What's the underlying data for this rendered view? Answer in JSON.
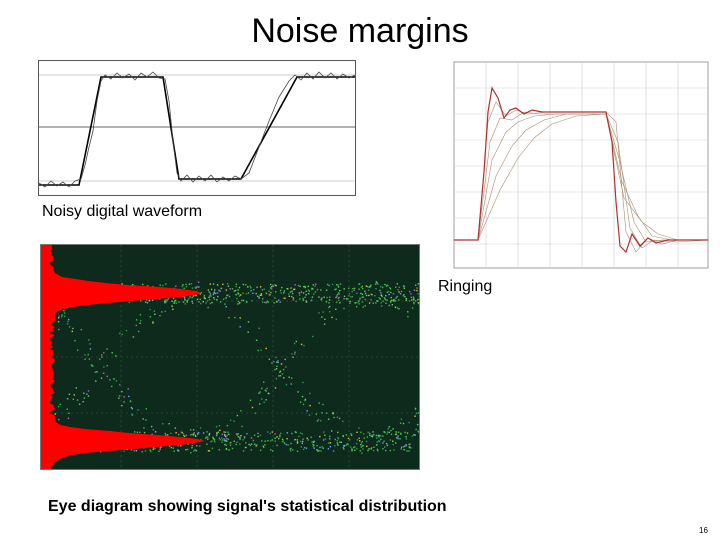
{
  "slide": {
    "title": "Noise margins",
    "page_number": "16"
  },
  "figures": {
    "noisy": {
      "caption": "Noisy digital waveform"
    },
    "ringing": {
      "caption": "Ringing"
    },
    "eye": {
      "caption": "Eye diagram showing signal's statistical distribution"
    }
  },
  "colors": {
    "ringing_trace": "#b03030",
    "ringing_family": "#a89070",
    "eye_background": "#0e2a1c",
    "eye_histogram": "#ff0000"
  }
}
